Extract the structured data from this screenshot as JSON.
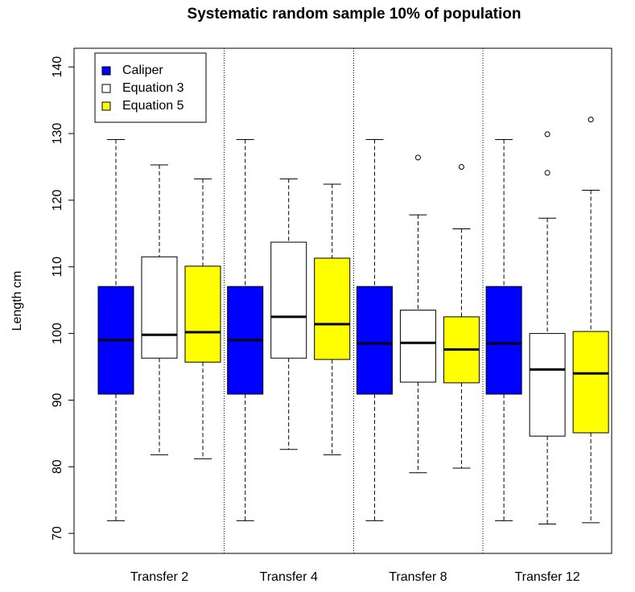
{
  "chart_data": {
    "type": "box",
    "title": "Systematic random sample 10% of population",
    "y_label": "Length cm",
    "categories": [
      "Transfer 2",
      "Transfer 4",
      "Transfer 8",
      "Transfer 12"
    ],
    "ylim": [
      67,
      142.8
    ],
    "yticks": [
      70,
      80,
      90,
      100,
      110,
      120,
      130,
      140
    ],
    "legend": "top-left",
    "series": [
      {
        "name": "Caliper",
        "color": "#0000ff",
        "values": [
          {
            "whislo": 71.9,
            "q1": 90.9,
            "med": 99,
            "q3": 107.05,
            "whishi": 129.1,
            "fliers": []
          },
          {
            "whislo": 71.9,
            "q1": 90.9,
            "med": 99,
            "q3": 107.05,
            "whishi": 129.1,
            "fliers": []
          },
          {
            "whislo": 71.9,
            "q1": 90.9,
            "med": 98.5,
            "q3": 107.05,
            "whishi": 129.1,
            "fliers": []
          },
          {
            "whislo": 71.9,
            "q1": 90.9,
            "med": 98.5,
            "q3": 107.05,
            "whishi": 129.1,
            "fliers": []
          }
        ]
      },
      {
        "name": "Equation 3",
        "color": "#ffffff",
        "values": [
          {
            "whislo": 81.8,
            "q1": 96.3,
            "med": 99.8,
            "q3": 111.5,
            "whishi": 125.3,
            "fliers": []
          },
          {
            "whislo": 82.6,
            "q1": 96.3,
            "med": 102.5,
            "q3": 113.7,
            "whishi": 123.2,
            "fliers": []
          },
          {
            "whislo": 79.1,
            "q1": 92.7,
            "med": 98.6,
            "q3": 103.5,
            "whishi": 117.8,
            "fliers": [
              126.4
            ]
          },
          {
            "whislo": 71.4,
            "q1": 84.6,
            "med": 94.6,
            "q3": 100,
            "whishi": 117.3,
            "fliers": [
              129.9,
              124.1
            ]
          }
        ]
      },
      {
        "name": "Equation 5",
        "color": "#ffff00",
        "values": [
          {
            "whislo": 81.2,
            "q1": 95.7,
            "med": 100.2,
            "q3": 110.1,
            "whishi": 123.2,
            "fliers": []
          },
          {
            "whislo": 81.8,
            "q1": 96.1,
            "med": 101.4,
            "q3": 111.3,
            "whishi": 122.4,
            "fliers": []
          },
          {
            "whislo": 79.8,
            "q1": 92.6,
            "med": 97.6,
            "q3": 102.5,
            "whishi": 115.7,
            "fliers": [
              125
            ]
          },
          {
            "whislo": 71.6,
            "q1": 85.1,
            "med": 94,
            "q3": 100.3,
            "whishi": 121.5,
            "fliers": [
              132.1
            ]
          }
        ]
      }
    ]
  }
}
